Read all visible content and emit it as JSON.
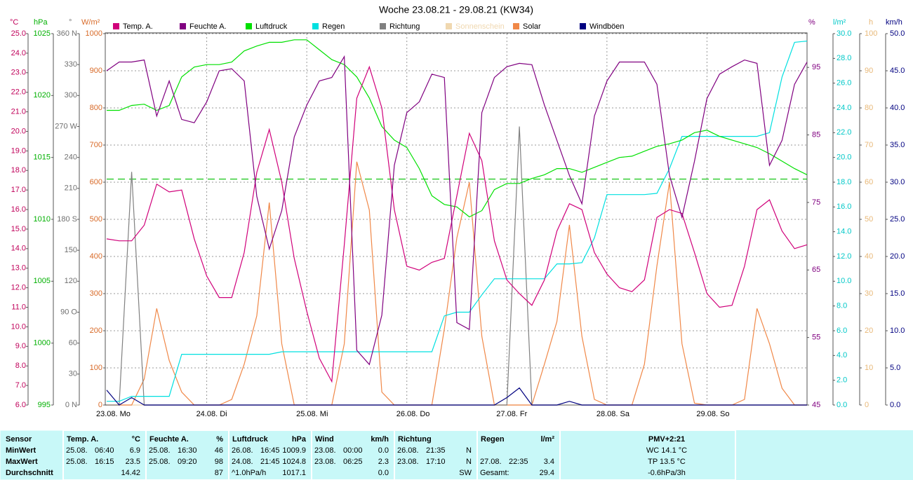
{
  "chart_data": {
    "type": "line",
    "title": "Woche 23.08.21 - 29.08.21 (KW34)",
    "x": [
      0,
      3,
      6,
      9,
      12,
      15,
      18,
      21,
      24,
      27,
      30,
      33,
      36,
      39,
      42,
      45,
      48,
      51,
      54,
      57,
      60,
      63,
      66,
      69,
      72,
      75,
      78,
      81,
      84,
      87,
      90,
      93,
      96,
      99,
      102,
      105,
      108,
      111,
      114,
      117,
      120,
      123,
      126,
      129,
      132,
      135,
      138,
      141,
      144,
      147,
      150,
      153,
      156,
      159,
      162,
      165,
      168
    ],
    "xlim": [
      0,
      168
    ],
    "xticks": [
      {
        "value": 0,
        "label": "23.08. Mo"
      },
      {
        "value": 24,
        "label": "24.08. Di"
      },
      {
        "value": 48,
        "label": "25.08. Mi"
      },
      {
        "value": 72,
        "label": "26.08. Do"
      },
      {
        "value": 96,
        "label": "27.08. Fr"
      },
      {
        "value": 120,
        "label": "28.08. Sa"
      },
      {
        "value": 144,
        "label": "29.08. So"
      }
    ],
    "grid": true,
    "hpa_reference_line": 1013.25,
    "axes": [
      {
        "unit": "°C",
        "color": "#c0005a",
        "lim": [
          6,
          25
        ],
        "ticks": [
          {
            "value": 6,
            "label": "6.0"
          },
          {
            "value": 7,
            "label": "7.0"
          },
          {
            "value": 8,
            "label": "8.0"
          },
          {
            "value": 9,
            "label": "9.0"
          },
          {
            "value": 10,
            "label": "10.0"
          },
          {
            "value": 11,
            "label": "11.0"
          },
          {
            "value": 12,
            "label": "12.0"
          },
          {
            "value": 13,
            "label": "13.0"
          },
          {
            "value": 14,
            "label": "14.0"
          },
          {
            "value": 15,
            "label": "15.0"
          },
          {
            "value": 16,
            "label": "16.0"
          },
          {
            "value": 17,
            "label": "17.0"
          },
          {
            "value": 18,
            "label": "18.0"
          },
          {
            "value": 19,
            "label": "19.0"
          },
          {
            "value": 20,
            "label": "20.0"
          },
          {
            "value": 21,
            "label": "21.0"
          },
          {
            "value": 22,
            "label": "22.0"
          },
          {
            "value": 23,
            "label": "23.0"
          },
          {
            "value": 24,
            "label": "24.0"
          },
          {
            "value": 25,
            "label": "25.0"
          }
        ]
      },
      {
        "unit": "hPa",
        "color": "#00b000",
        "lim": [
          995,
          1025
        ],
        "ticks": [
          995,
          1000,
          1005,
          1010,
          1015,
          1020,
          1025
        ]
      },
      {
        "unit": "°",
        "color": "#707070",
        "lim": [
          0,
          360
        ],
        "ticks": [
          {
            "value": 0,
            "label": "0 N"
          },
          30,
          60,
          {
            "value": 90,
            "label": "90 O"
          },
          120,
          150,
          {
            "value": 180,
            "label": "180 S"
          },
          210,
          240,
          {
            "value": 270,
            "label": "270 W"
          },
          300,
          330,
          {
            "value": 360,
            "label": "360 N"
          }
        ]
      },
      {
        "unit": "W/m²",
        "color": "#d86a28",
        "lim": [
          0,
          1000
        ],
        "ticks": [
          0,
          100,
          200,
          300,
          400,
          500,
          600,
          700,
          800,
          900,
          1000
        ]
      },
      {
        "unit": "%",
        "color": "#800080",
        "lim": [
          45,
          100
        ],
        "ticks": [
          45,
          55,
          65,
          75,
          85,
          95
        ]
      },
      {
        "unit": "l/m²",
        "color": "#00c8c8",
        "lim": [
          0,
          30
        ],
        "ticks": [
          {
            "value": 0,
            "label": "0.0"
          },
          {
            "value": 2,
            "label": "2.0"
          },
          {
            "value": 4,
            "label": "4.0"
          },
          {
            "value": 6,
            "label": "6.0"
          },
          {
            "value": 8,
            "label": "8.0"
          },
          {
            "value": 10,
            "label": "10.0"
          },
          {
            "value": 12,
            "label": "12.0"
          },
          {
            "value": 14,
            "label": "14.0"
          },
          {
            "value": 16,
            "label": "16.0"
          },
          {
            "value": 18,
            "label": "18.0"
          },
          {
            "value": 20,
            "label": "20.0"
          },
          {
            "value": 22,
            "label": "22.0"
          },
          {
            "value": 24,
            "label": "24.0"
          },
          {
            "value": 26,
            "label": "26.0"
          },
          {
            "value": 28,
            "label": "28.0"
          },
          {
            "value": 30,
            "label": "30.0"
          }
        ]
      },
      {
        "unit": "h",
        "color": "#e8b878",
        "lim": [
          0,
          100
        ],
        "ticks": [
          0,
          10,
          20,
          30,
          40,
          50,
          60,
          70,
          80,
          90,
          100
        ]
      },
      {
        "unit": "km/h",
        "color": "#000080",
        "lim": [
          0,
          50
        ],
        "ticks": [
          {
            "value": 0,
            "label": "0.0"
          },
          {
            "value": 5,
            "label": "5.0"
          },
          {
            "value": 10,
            "label": "10.0"
          },
          {
            "value": 15,
            "label": "15.0"
          },
          {
            "value": 20,
            "label": "20.0"
          },
          {
            "value": 25,
            "label": "25.0"
          },
          {
            "value": 30,
            "label": "30.0"
          },
          {
            "value": 35,
            "label": "35.0"
          },
          {
            "value": 40,
            "label": "40.0"
          },
          {
            "value": 45,
            "label": "45.0"
          },
          {
            "value": 50,
            "label": "50.0"
          }
        ]
      }
    ],
    "series": [
      {
        "name": "Temp. A.",
        "color": "#d0007a",
        "axis": 0,
        "values": [
          14.5,
          14.4,
          14.4,
          15.2,
          17.3,
          16.9,
          17.0,
          14.5,
          12.6,
          11.5,
          11.5,
          13.8,
          17.9,
          20.1,
          17.4,
          13.5,
          10.8,
          8.4,
          7.2,
          14.2,
          21.7,
          23.3,
          21.2,
          16.0,
          13.1,
          12.9,
          13.3,
          13.5,
          16.7,
          19.9,
          18.5,
          14.4,
          12.4,
          11.7,
          11.1,
          12.4,
          14.9,
          16.3,
          16.0,
          13.8,
          12.7,
          12.0,
          11.8,
          12.4,
          15.6,
          16.0,
          15.8,
          13.8,
          11.7,
          11.0,
          11.1,
          13.1,
          16.0,
          16.5,
          14.9,
          14.0,
          14.2
        ]
      },
      {
        "name": "Feuchte A.",
        "color": "#800080",
        "axis": 4,
        "values": [
          94.5,
          95.8,
          95.8,
          96.1,
          87.8,
          93.0,
          87.3,
          86.8,
          89.9,
          94.5,
          94.8,
          93.0,
          75.9,
          68.1,
          73.8,
          84.7,
          89.4,
          93.0,
          93.5,
          96.6,
          53.1,
          51.0,
          58.3,
          80.5,
          88.3,
          89.9,
          94.0,
          93.5,
          57.2,
          56.2,
          88.3,
          93.5,
          95.1,
          95.6,
          95.4,
          89.4,
          84.2,
          79.0,
          74.8,
          87.8,
          93.0,
          95.8,
          95.8,
          95.8,
          92.5,
          79.0,
          72.8,
          81.1,
          90.4,
          94.0,
          95.1,
          96.1,
          95.6,
          80.5,
          84.2,
          92.5,
          95.8
        ]
      },
      {
        "name": "Luftdruck",
        "color": "#00e000",
        "axis": 1,
        "values": [
          1018.8,
          1018.8,
          1019.2,
          1019.3,
          1018.8,
          1019.2,
          1021.5,
          1022.3,
          1022.5,
          1022.5,
          1022.7,
          1023.6,
          1024.0,
          1024.3,
          1024.3,
          1024.5,
          1024.5,
          1023.7,
          1022.9,
          1022.5,
          1021.5,
          1019.8,
          1017.5,
          1016.4,
          1015.8,
          1014.1,
          1011.9,
          1011.2,
          1011.0,
          1010.2,
          1010.7,
          1012.4,
          1012.9,
          1012.9,
          1013.3,
          1013.6,
          1014.1,
          1014.1,
          1013.8,
          1014.2,
          1014.6,
          1015.0,
          1015.1,
          1015.5,
          1015.9,
          1016.1,
          1016.4,
          1017.0,
          1017.2,
          1016.7,
          1016.4,
          1016.1,
          1015.8,
          1015.3,
          1014.7,
          1014.1,
          1013.6
        ]
      },
      {
        "name": "Regen",
        "color": "#00e0e0",
        "axis": 5,
        "values": [
          0.3,
          0.3,
          0.7,
          0.7,
          0.7,
          0.7,
          4.1,
          4.1,
          4.1,
          4.1,
          4.1,
          4.1,
          4.1,
          4.1,
          4.3,
          4.3,
          4.3,
          4.3,
          4.3,
          4.3,
          4.3,
          4.3,
          4.3,
          4.3,
          4.3,
          4.3,
          4.3,
          7.2,
          7.5,
          7.5,
          8.9,
          10.2,
          10.2,
          10.2,
          10.2,
          10.2,
          11.4,
          11.4,
          11.5,
          13.5,
          17.0,
          17.0,
          17.0,
          17.0,
          17.1,
          19.1,
          21.7,
          21.7,
          21.7,
          21.7,
          21.7,
          21.7,
          21.7,
          22.0,
          26.5,
          29.3,
          29.4
        ]
      },
      {
        "name": "Richtung",
        "color": "#808080",
        "axis": 2,
        "values": [
          0,
          0,
          226,
          0,
          0,
          0,
          0,
          0,
          0,
          0,
          0,
          0,
          0,
          0,
          0,
          0,
          0,
          0,
          0,
          0,
          0,
          0,
          0,
          0,
          0,
          0,
          0,
          0,
          0,
          0,
          0,
          0,
          0,
          270,
          0,
          0,
          0,
          0,
          0,
          0,
          0,
          0,
          0,
          0,
          0,
          0,
          0,
          0,
          0,
          0,
          0,
          0,
          0,
          0,
          0,
          0,
          0
        ]
      },
      {
        "name": "Sonnenschein",
        "color": "#f0d8b0",
        "axis": 6,
        "values": [
          0,
          0,
          0,
          0,
          0,
          0,
          0,
          0,
          0,
          0,
          0,
          0,
          0,
          0,
          0,
          0,
          0,
          0,
          0,
          0,
          0,
          0,
          0,
          0,
          0,
          0,
          0,
          0,
          0,
          0,
          0,
          0,
          0,
          0,
          0,
          0,
          0,
          0,
          0,
          0,
          0,
          0,
          0,
          0,
          0,
          0,
          0,
          0,
          0,
          0,
          0,
          0,
          0,
          0,
          0,
          0,
          0
        ]
      },
      {
        "name": "Solar",
        "color": "#f08848",
        "axis": 3,
        "values": [
          0,
          0,
          0,
          70,
          260,
          120,
          35,
          0,
          0,
          0,
          15,
          110,
          240,
          545,
          165,
          0,
          0,
          0,
          0,
          165,
          655,
          525,
          35,
          0,
          0,
          0,
          0,
          205,
          450,
          600,
          185,
          0,
          0,
          0,
          0,
          110,
          225,
          485,
          185,
          15,
          0,
          0,
          0,
          110,
          375,
          600,
          165,
          5,
          0,
          0,
          0,
          15,
          260,
          165,
          45,
          0,
          0
        ]
      },
      {
        "name": "Windböen",
        "color": "#000080",
        "axis": 7,
        "values": [
          2.0,
          0,
          1.0,
          0,
          0,
          0,
          0,
          0,
          0,
          0,
          0,
          0,
          0,
          0,
          0,
          0,
          0,
          0,
          0,
          0,
          0,
          0,
          0,
          0,
          0,
          0,
          0,
          0,
          0,
          0,
          0,
          0,
          1.0,
          2.3,
          0,
          0,
          0,
          0.5,
          0,
          0,
          0,
          0,
          0,
          0,
          0,
          0,
          0,
          0,
          0,
          0,
          0,
          0,
          0,
          0,
          0,
          0,
          0
        ]
      }
    ]
  },
  "table": {
    "sensor": "Sensor",
    "row_labels": [
      "MinWert",
      "MaxWert",
      "Durchschnitt"
    ],
    "sections": [
      {
        "title": "Temp. A.",
        "unit": "°C",
        "rows": [
          {
            "date": "25.08.",
            "time": "06:40",
            "value": "6.9"
          },
          {
            "date": "25.08.",
            "time": "16:15",
            "value": "23.5"
          },
          {
            "value": "14.42"
          }
        ]
      },
      {
        "title": "Feuchte A.",
        "unit": "%",
        "rows": [
          {
            "date": "25.08.",
            "time": "16:30",
            "value": "46"
          },
          {
            "date": "25.08.",
            "time": "09:20",
            "value": "98"
          },
          {
            "value": "87"
          }
        ]
      },
      {
        "title": "Luftdruck",
        "unit": "hPa",
        "rows": [
          {
            "date": "26.08.",
            "time": "16:45",
            "value": "1009.9"
          },
          {
            "date": "24.08.",
            "time": "21:45",
            "value": "1024.8"
          },
          {
            "date": "^1.0hPa/h",
            "value": "1017.1"
          }
        ]
      },
      {
        "title": "Wind",
        "unit": "km/h",
        "rows": [
          {
            "date": "23.08.",
            "time": "00:00",
            "value": "0.0"
          },
          {
            "date": "23.08.",
            "time": "06:25",
            "value": "2.3"
          },
          {
            "value": "0.0"
          }
        ]
      },
      {
        "title": "Richtung",
        "rows": [
          {
            "date": "26.08.",
            "time": "21:35",
            "value": "N"
          },
          {
            "date": "23.08.",
            "time": "17:10",
            "value": "N"
          },
          {
            "value": "SW"
          }
        ]
      },
      {
        "title": "Regen",
        "unit": "l/m²",
        "rows": [
          {},
          {
            "date": "27.08.",
            "time": "22:35",
            "value": "3.4"
          },
          {
            "date": "Gesamt:",
            "value": "29.4"
          }
        ]
      }
    ],
    "pmv": {
      "title": "PMV+2:21",
      "lines": [
        "WC 14.1 °C",
        "TP 13.5 °C",
        "-0.6hPa/3h"
      ]
    }
  }
}
